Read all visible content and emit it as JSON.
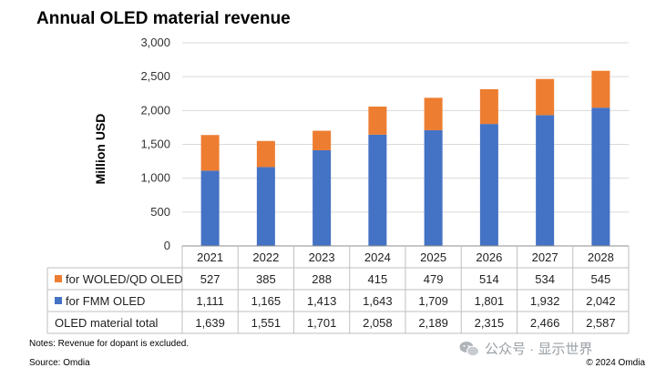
{
  "title": "Annual OLED material revenue",
  "notes": "Notes: Revenue for dopant is excluded.",
  "source": "Source: Omdia",
  "copyright": "© 2024 Omdia",
  "watermark": "公众号 · 显示世界",
  "chart_data": {
    "type": "bar",
    "stacked": true,
    "title": "Annual OLED material revenue",
    "ylabel": "Million USD",
    "ylim": [
      0,
      3000
    ],
    "yticks": [
      0,
      500,
      1000,
      1500,
      2000,
      2500,
      3000
    ],
    "ytick_labels": [
      "0",
      "500",
      "1,000",
      "1,500",
      "2,000",
      "2,500",
      "3,000"
    ],
    "grid": true,
    "categories": [
      "2021",
      "2022",
      "2023",
      "2024",
      "2025",
      "2026",
      "2027",
      "2028"
    ],
    "series": [
      {
        "name": "for FMM OLED",
        "color": "#4472c4",
        "values": [
          1111,
          1165,
          1413,
          1643,
          1709,
          1801,
          1932,
          2042
        ],
        "labels": [
          "1,111",
          "1,165",
          "1,413",
          "1,643",
          "1,709",
          "1,801",
          "1,932",
          "2,042"
        ]
      },
      {
        "name": "for WOLED/QD OLED",
        "color": "#ed7d31",
        "values": [
          527,
          385,
          288,
          415,
          479,
          514,
          534,
          545
        ],
        "labels": [
          "527",
          "385",
          "288",
          "415",
          "479",
          "514",
          "534",
          "545"
        ]
      }
    ],
    "table": {
      "rows": [
        {
          "label": "for WOLED/QD OLED",
          "legend_color": "#ed7d31",
          "series": 1
        },
        {
          "label": "for FMM OLED",
          "legend_color": "#4472c4",
          "series": 0
        },
        {
          "label": "OLED material total",
          "cells": [
            "1,639",
            "1,551",
            "1,701",
            "2,058",
            "2,189",
            "2,315",
            "2,466",
            "2,587"
          ]
        }
      ]
    }
  }
}
